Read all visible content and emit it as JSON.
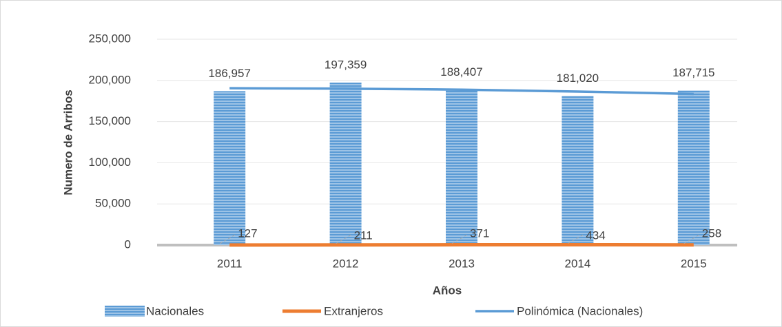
{
  "chart_data": {
    "type": "bar",
    "categories": [
      "2011",
      "2012",
      "2013",
      "2014",
      "2015"
    ],
    "series": [
      {
        "name": "Nacionales",
        "type": "bar",
        "color": "#5b9bd5",
        "values": [
          186957,
          197359,
          188407,
          181020,
          187715
        ],
        "value_labels": [
          "186,957",
          "197,359",
          "188,407",
          "181,020",
          "187,715"
        ]
      },
      {
        "name": "Extranjeros",
        "type": "line",
        "color": "#ed7d31",
        "values": [
          127,
          211,
          371,
          434,
          258
        ]
      },
      {
        "name": "Polinómica (Nacionales)",
        "type": "line",
        "color": "#5b9bd5",
        "values": [
          190500,
          190000,
          188800,
          186500,
          183500
        ]
      }
    ],
    "xlabel": "Años",
    "ylabel": "Numero de Arribos",
    "ylim": [
      0,
      250000
    ],
    "yticks": [
      0,
      {
        "value": 50000,
        "label": "50,000"
      },
      {
        "value": 100000,
        "label": "100,000"
      },
      {
        "value": 150000,
        "label": "150,000"
      },
      {
        "value": 200000,
        "label": "200,000"
      },
      {
        "value": 250000,
        "label": "250,000"
      }
    ],
    "grid": true,
    "legend": "bottom"
  }
}
